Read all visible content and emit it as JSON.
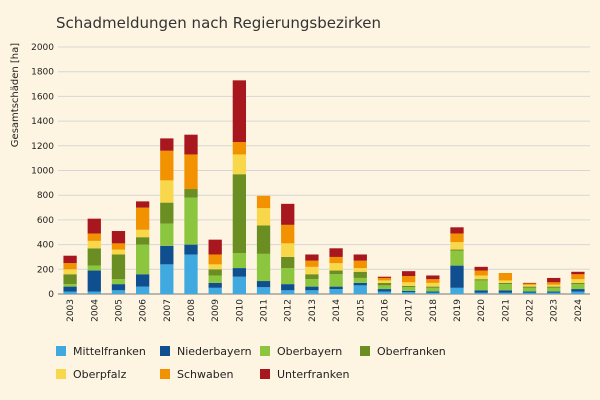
{
  "chart_data": {
    "type": "bar",
    "stacked": true,
    "title": "Schadmeldungen nach Regierungsbezirken",
    "ylabel": "Gesamtschäden [ha]",
    "xlabel": "",
    "ylim": [
      0,
      2000
    ],
    "yticks": [
      0,
      200,
      400,
      600,
      800,
      1000,
      1200,
      1400,
      1600,
      1800,
      2000
    ],
    "grid": true,
    "legend": "bottom",
    "categories": [
      "2003",
      "2004",
      "2005",
      "2006",
      "2007",
      "2008",
      "2009",
      "2010",
      "2011",
      "2012",
      "2013",
      "2014",
      "2015",
      "2016",
      "2017",
      "2018",
      "2019",
      "2020",
      "2021",
      "2022",
      "2023",
      "2024"
    ],
    "series": [
      {
        "name": "Mittelfranken",
        "color": "#3fa9e0",
        "values": [
          20,
          20,
          30,
          60,
          240,
          320,
          50,
          140,
          55,
          30,
          30,
          40,
          70,
          20,
          15,
          10,
          50,
          10,
          10,
          10,
          10,
          20
        ]
      },
      {
        "name": "Niederbayern",
        "color": "#0f4f8f",
        "values": [
          40,
          170,
          50,
          100,
          150,
          80,
          40,
          70,
          50,
          50,
          30,
          20,
          20,
          20,
          10,
          10,
          180,
          20,
          20,
          10,
          10,
          20
        ]
      },
      {
        "name": "Oberbayern",
        "color": "#8cc63f",
        "values": [
          20,
          40,
          40,
          240,
          180,
          380,
          60,
          120,
          220,
          130,
          60,
          100,
          40,
          30,
          30,
          30,
          120,
          80,
          50,
          30,
          30,
          40
        ]
      },
      {
        "name": "Oberfranken",
        "color": "#6b8e23",
        "values": [
          80,
          140,
          200,
          60,
          170,
          70,
          50,
          640,
          230,
          90,
          40,
          30,
          50,
          20,
          10,
          10,
          10,
          10,
          10,
          10,
          10,
          10
        ]
      },
      {
        "name": "Oberpfalz",
        "color": "#f8d84a",
        "values": [
          40,
          60,
          40,
          60,
          180,
          0,
          40,
          160,
          140,
          110,
          60,
          60,
          30,
          20,
          30,
          30,
          60,
          30,
          20,
          15,
          15,
          30
        ]
      },
      {
        "name": "Schwaben",
        "color": "#f39200",
        "values": [
          50,
          60,
          50,
          180,
          240,
          280,
          80,
          100,
          100,
          150,
          50,
          50,
          60,
          20,
          50,
          30,
          70,
          40,
          60,
          10,
          20,
          40
        ]
      },
      {
        "name": "Unterfranken",
        "color": "#a8161e",
        "values": [
          60,
          120,
          100,
          50,
          100,
          160,
          120,
          500,
          0,
          170,
          50,
          70,
          50,
          10,
          40,
          30,
          50,
          30,
          0,
          5,
          35,
          20
        ]
      }
    ]
  }
}
